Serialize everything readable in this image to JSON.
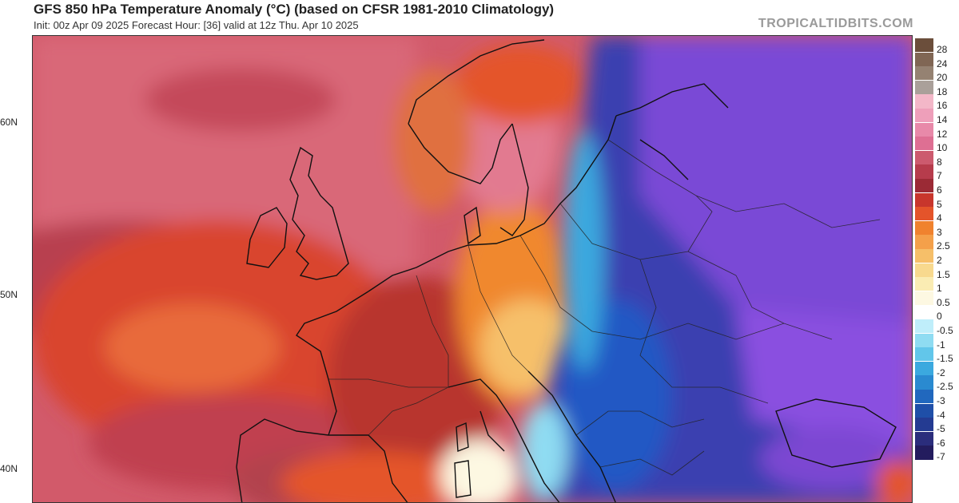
{
  "header": {
    "title": "GFS 850 hPa Temperature Anomaly (°C) (based on CFSR 1981-2010 Climatology)",
    "subtitle": "Init: 00z Apr 09 2025   Forecast Hour: [36]   valid at 12z Thu. Apr 10 2025",
    "brand": "TROPICALTIDBITS.COM"
  },
  "latitude_labels": [
    "60N",
    "50N",
    "40N"
  ],
  "colorbar": {
    "labels": [
      "28",
      "24",
      "20",
      "18",
      "16",
      "14",
      "12",
      "10",
      "8",
      "7",
      "6",
      "5",
      "4",
      "3",
      "2.5",
      "2",
      "1.5",
      "1",
      "0.5",
      "0",
      "-0.5",
      "-1",
      "-1.5",
      "-2",
      "-2.5",
      "-3",
      "-4",
      "-5",
      "-6",
      "-7"
    ],
    "colors": [
      "#6b4e3b",
      "#806654",
      "#958272",
      "#aaa09a",
      "#f3b7c8",
      "#ee9fba",
      "#e889a9",
      "#de6f93",
      "#cc5a6e",
      "#b63c4c",
      "#9b2a35",
      "#c8362c",
      "#e4542a",
      "#f0822e",
      "#f4a04a",
      "#f6bf69",
      "#f8d98e",
      "#faecb3",
      "#fdf8e2",
      "#ffffff",
      "#bfeefa",
      "#8fdcf2",
      "#62c6ea",
      "#3ba9df",
      "#2a8ad0",
      "#2168be",
      "#1f4fa8",
      "#243b92",
      "#2b2d7c",
      "#231c5e"
    ]
  },
  "map_legend": {
    "region": "Europe",
    "variable": "850 hPa temperature anomaly",
    "unit": "°C"
  }
}
